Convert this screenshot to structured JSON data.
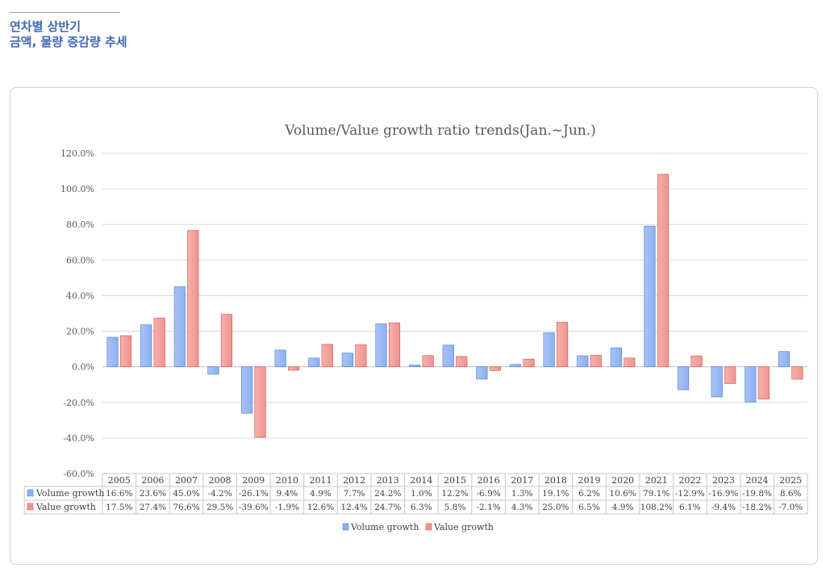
{
  "header": {
    "title_line1": "연차별 상반기",
    "title_line2": "금액, 물량 증감량 추세"
  },
  "colors": {
    "volume": "#8cb0f2",
    "value": "#f1938e",
    "title": "#3f68b5"
  },
  "chart_data": {
    "type": "bar",
    "title": "Volume/Value growth ratio trends(Jan.~Jun.)",
    "categories": [
      "2005",
      "2006",
      "2007",
      "2008",
      "2009",
      "2010",
      "2011",
      "2012",
      "2013",
      "2014",
      "2015",
      "2016",
      "2017",
      "2018",
      "2019",
      "2020",
      "2021",
      "2022",
      "2023",
      "2024",
      "2025"
    ],
    "series": [
      {
        "name": "Volume growth",
        "values": [
          16.6,
          23.6,
          45.0,
          -4.2,
          -26.1,
          9.4,
          4.9,
          7.7,
          24.2,
          1.0,
          12.2,
          -6.9,
          1.3,
          19.1,
          6.2,
          10.6,
          79.1,
          -12.9,
          -16.9,
          -19.8,
          8.6
        ],
        "labels": [
          "16.6%",
          "23.6%",
          "45.0%",
          "-4.2%",
          "-26.1%",
          "9.4%",
          "4.9%",
          "7.7%",
          "24.2%",
          "1.0%",
          "12.2%",
          "-6.9%",
          "1.3%",
          "19.1%",
          "6.2%",
          "10.6%",
          "79.1%",
          "-12.9%",
          "-16.9%",
          "-19.8%",
          "8.6%"
        ]
      },
      {
        "name": "Value growth",
        "values": [
          17.5,
          27.4,
          76.6,
          29.5,
          -39.6,
          -1.9,
          12.6,
          12.4,
          24.7,
          6.3,
          5.8,
          -2.1,
          4.3,
          25.0,
          6.5,
          4.9,
          108.2,
          6.1,
          -9.4,
          -18.2,
          -7.0
        ],
        "labels": [
          "17.5%",
          "27.4%",
          "76.6%",
          "29.5%",
          "-39.6%",
          "-1.9%",
          "12.6%",
          "12.4%",
          "24.7%",
          "6.3%",
          "5.8%",
          "-2.1%",
          "4.3%",
          "25.0%",
          "6.5%",
          "4.9%",
          "108.2%",
          "6.1%",
          "-9.4%",
          "-18.2%",
          "-7.0%"
        ]
      }
    ],
    "ylim": [
      -60,
      120
    ],
    "yticks": [
      -60,
      -40,
      -20,
      0,
      20,
      40,
      60,
      80,
      100,
      120
    ],
    "ytick_labels": [
      "-60.0%",
      "-40.0%",
      "-20.0%",
      "0.0%",
      "20.0%",
      "40.0%",
      "60.0%",
      "80.0%",
      "100.0%",
      "120.0%"
    ],
    "grid": true,
    "legend": "bottom",
    "data_table": true
  }
}
